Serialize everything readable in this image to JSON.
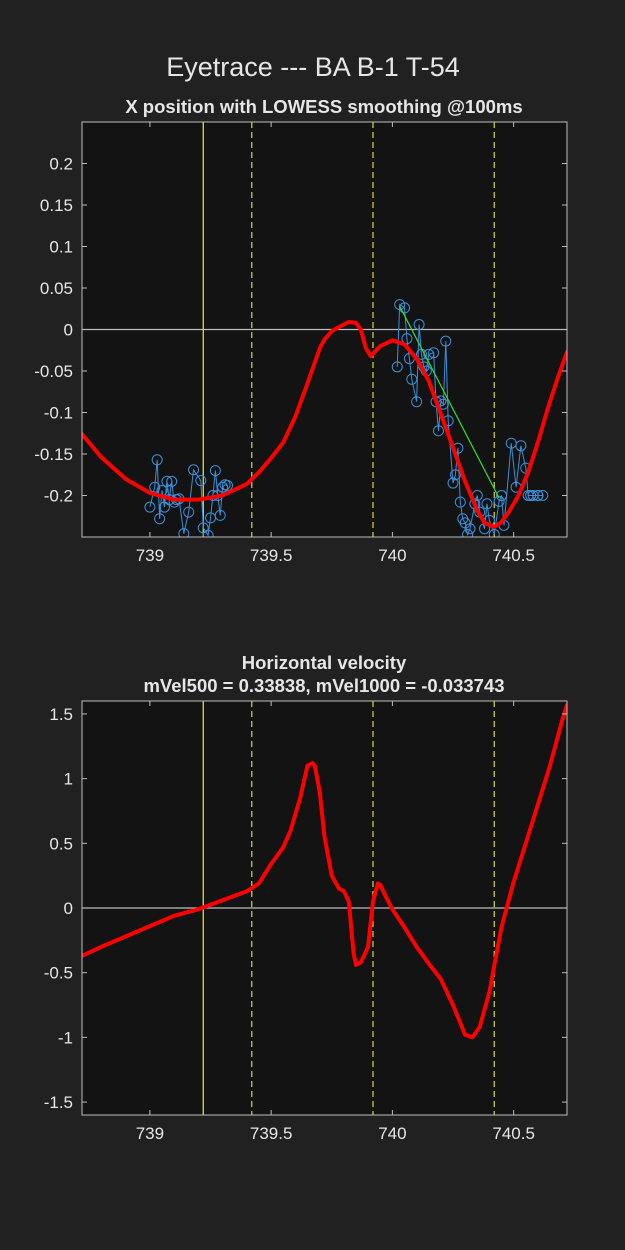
{
  "suptitle": "Eyetrace --- BA B-1 T-54",
  "colors": {
    "figure_bg": "#212121",
    "axes_bg": "#131313",
    "axis_line": "#bdbdbd",
    "text": "#e6e6e6",
    "smooth": "#ff0000",
    "raw": "#3d8fd9",
    "fit": "#33e033",
    "marker_solid": "#dede4a",
    "marker_dashed": "#c9c940",
    "zero_line": "#bdbdbd"
  },
  "chart_data": [
    {
      "type": "line",
      "title": "X position with LOWESS smoothing @100ms",
      "xlim": [
        738.72,
        740.72
      ],
      "ylim": [
        -0.25,
        0.25
      ],
      "xticks": [
        739,
        739.5,
        740,
        740.5
      ],
      "xtick_labels": [
        "739",
        "739.5",
        "740",
        "740.5"
      ],
      "yticks": [
        0.2,
        0.15,
        0.1,
        0.05,
        0,
        -0.05,
        -0.1,
        -0.15,
        -0.2
      ],
      "ytick_labels": [
        "0.2",
        "0.15",
        "0.1",
        "0.05",
        "0",
        "-0.05",
        "-0.1",
        "-0.15",
        "-0.2"
      ],
      "vlines": [
        {
          "x": 739.22,
          "style": "solid"
        },
        {
          "x": 739.42,
          "style": "dashed"
        },
        {
          "x": 739.92,
          "style": "dashed"
        },
        {
          "x": 740.42,
          "style": "dashed"
        }
      ],
      "hline": 0,
      "series": [
        {
          "name": "raw samples (segment 1)",
          "style": "raw",
          "x": [
            739.0,
            739.02,
            739.03,
            739.04,
            739.05,
            739.06,
            739.07,
            739.08,
            739.09,
            739.1,
            739.11,
            739.12,
            739.14,
            739.16,
            739.18,
            739.21,
            739.22,
            739.24,
            739.25,
            739.26,
            739.27,
            739.28,
            739.29,
            739.3,
            739.31,
            739.32
          ],
          "y": [
            -0.214,
            -0.19,
            -0.157,
            -0.228,
            -0.194,
            -0.214,
            -0.183,
            -0.205,
            -0.183,
            -0.208,
            -0.205,
            -0.204,
            -0.246,
            -0.22,
            -0.169,
            -0.182,
            -0.239,
            -0.248,
            -0.227,
            -0.2,
            -0.17,
            -0.2,
            -0.224,
            -0.19,
            -0.187,
            -0.188
          ]
        },
        {
          "name": "raw samples (segment 2)",
          "style": "raw",
          "x": [
            740.02,
            740.03,
            740.05,
            740.06,
            740.07,
            740.08,
            740.1,
            740.11,
            740.12,
            740.13,
            740.14,
            740.15,
            740.17,
            740.18,
            740.19,
            740.2,
            740.21,
            740.22,
            740.23,
            740.25,
            740.26,
            740.27,
            740.28,
            740.29,
            740.3,
            740.31,
            740.32,
            740.34,
            740.35,
            740.36,
            740.38,
            740.39,
            740.4,
            740.42,
            740.44,
            740.45,
            740.46,
            740.49,
            740.51,
            740.53,
            740.55,
            740.56,
            740.57,
            740.58,
            740.6,
            740.6,
            740.62
          ],
          "y": [
            -0.045,
            0.03,
            0.026,
            -0.011,
            -0.035,
            -0.06,
            -0.087,
            0.006,
            -0.03,
            -0.045,
            -0.05,
            -0.03,
            -0.028,
            -0.087,
            -0.122,
            -0.086,
            -0.09,
            -0.014,
            -0.11,
            -0.185,
            -0.175,
            -0.143,
            -0.208,
            -0.228,
            -0.233,
            -0.247,
            -0.24,
            -0.21,
            -0.2,
            -0.22,
            -0.24,
            -0.21,
            -0.23,
            -0.247,
            -0.207,
            -0.2,
            -0.236,
            -0.137,
            -0.19,
            -0.14,
            -0.167,
            -0.2,
            -0.2,
            -0.2,
            -0.2,
            -0.2,
            -0.2
          ]
        },
        {
          "name": "linear fit",
          "style": "fit",
          "x": [
            740.03,
            740.44
          ],
          "y": [
            0.028,
            -0.203
          ]
        },
        {
          "name": "LOWESS smoothed",
          "style": "smooth",
          "x": [
            738.72,
            738.8,
            738.9,
            739.0,
            739.1,
            739.2,
            739.3,
            739.4,
            739.45,
            739.5,
            739.55,
            739.6,
            739.65,
            739.7,
            739.72,
            739.75,
            739.78,
            739.82,
            739.85,
            739.87,
            739.89,
            739.91,
            739.95,
            740.0,
            740.05,
            740.1,
            740.15,
            740.2,
            740.25,
            740.3,
            740.35,
            740.38,
            740.42,
            740.45,
            740.48,
            740.52,
            740.56,
            740.6,
            740.64,
            740.68,
            740.72
          ],
          "y": [
            -0.126,
            -0.154,
            -0.18,
            -0.197,
            -0.205,
            -0.205,
            -0.2,
            -0.186,
            -0.172,
            -0.155,
            -0.136,
            -0.105,
            -0.065,
            -0.023,
            -0.012,
            -0.002,
            0.003,
            0.009,
            0.008,
            0.0,
            -0.022,
            -0.032,
            -0.02,
            -0.013,
            -0.018,
            -0.035,
            -0.062,
            -0.102,
            -0.142,
            -0.183,
            -0.218,
            -0.233,
            -0.238,
            -0.232,
            -0.22,
            -0.2,
            -0.172,
            -0.136,
            -0.096,
            -0.06,
            -0.027
          ]
        }
      ]
    },
    {
      "type": "line",
      "title": "Horizontal velocity",
      "subtitle": "mVel500 = 0.33838, mVel1000 = -0.033743",
      "xlim": [
        738.72,
        740.72
      ],
      "ylim": [
        -1.6,
        1.6
      ],
      "xticks": [
        739,
        739.5,
        740,
        740.5
      ],
      "xtick_labels": [
        "739",
        "739.5",
        "740",
        "740.5"
      ],
      "yticks": [
        1.5,
        1,
        0.5,
        0,
        -0.5,
        -1,
        -1.5
      ],
      "ytick_labels": [
        "1.5",
        "1",
        "0.5",
        "0",
        "-0.5",
        "-1",
        "-1.5"
      ],
      "vlines": [
        {
          "x": 739.22,
          "style": "solid"
        },
        {
          "x": 739.42,
          "style": "dashed"
        },
        {
          "x": 739.92,
          "style": "dashed"
        },
        {
          "x": 740.42,
          "style": "dashed"
        }
      ],
      "hline": 0,
      "series": [
        {
          "name": "horizontal velocity",
          "style": "smooth",
          "x": [
            738.72,
            738.8,
            738.9,
            739.0,
            739.1,
            739.2,
            739.3,
            739.4,
            739.45,
            739.5,
            739.55,
            739.58,
            739.62,
            739.65,
            739.67,
            739.68,
            739.7,
            739.72,
            739.75,
            739.78,
            739.8,
            739.82,
            739.84,
            739.85,
            739.87,
            739.9,
            739.92,
            739.94,
            739.95,
            739.97,
            740.0,
            740.05,
            740.1,
            740.15,
            740.2,
            740.25,
            740.3,
            740.33,
            740.36,
            740.4,
            740.42,
            740.45,
            740.5,
            740.55,
            740.6,
            740.65,
            740.7,
            740.72
          ],
          "y": [
            -0.37,
            -0.3,
            -0.22,
            -0.14,
            -0.06,
            -0.01,
            0.06,
            0.13,
            0.19,
            0.34,
            0.47,
            0.6,
            0.85,
            1.1,
            1.12,
            1.1,
            0.9,
            0.55,
            0.25,
            0.15,
            0.13,
            0.05,
            -0.35,
            -0.44,
            -0.42,
            -0.3,
            0.05,
            0.19,
            0.18,
            0.1,
            -0.01,
            -0.15,
            -0.3,
            -0.43,
            -0.55,
            -0.75,
            -0.98,
            -1.0,
            -0.92,
            -0.65,
            -0.45,
            -0.15,
            0.2,
            0.5,
            0.8,
            1.1,
            1.45,
            1.57
          ]
        }
      ]
    }
  ]
}
